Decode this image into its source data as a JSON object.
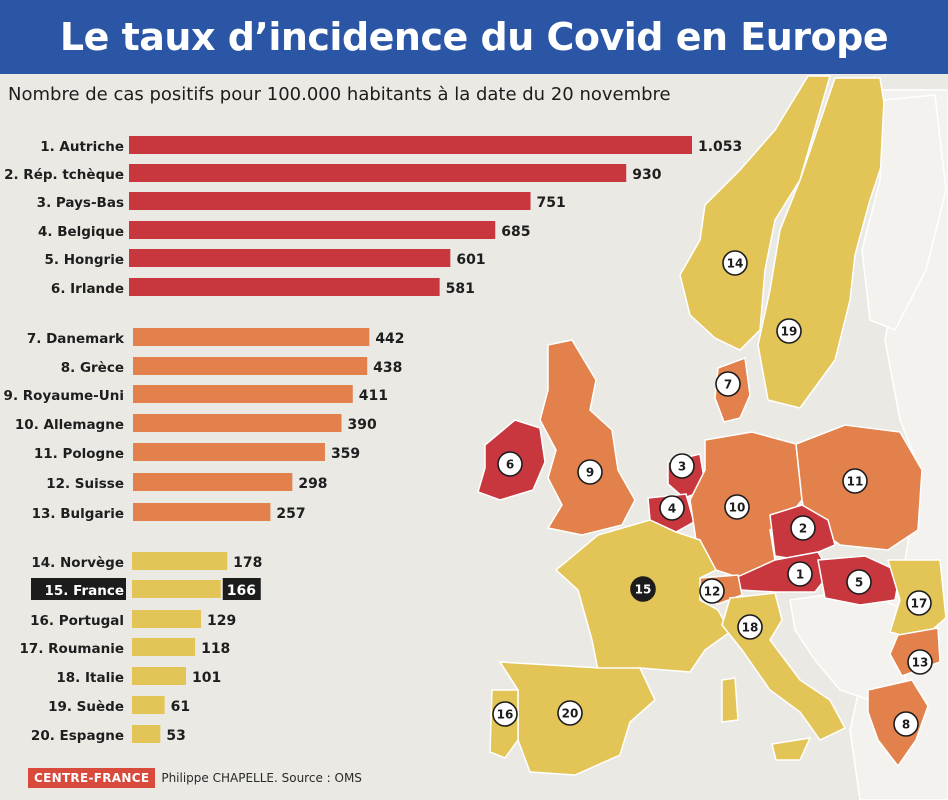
{
  "title": "Le taux d’incidence du Covid en Europe",
  "subtitle": "Nombre de cas positifs pour 100.000 habitants à la date du 20 novembre",
  "colors": {
    "group1": "#c8363e",
    "group2": "#e2814b",
    "group3": "#e3c456",
    "highlight": "#1c1c1c",
    "sea": "#ebe9e4",
    "other_land": "#f3f2ee",
    "border": "#ffffff"
  },
  "chart_data": {
    "type": "bar",
    "orientation": "horizontal",
    "categories": [
      "1. Autriche",
      "2. Rép. tchèque",
      "3. Pays-Bas",
      "4. Belgique",
      "5. Hongrie",
      "6. Irlande",
      "7. Danemark",
      "8. Grèce",
      "9. Royaume-Uni",
      "10. Allemagne",
      "11. Pologne",
      "12. Suisse",
      "13. Bulgarie",
      "14. Norvège",
      "15. France",
      "16. Portugal",
      "17. Roumanie",
      "18. Italie",
      "19. Suède",
      "20. Espagne"
    ],
    "values": [
      1053,
      930,
      751,
      685,
      601,
      581,
      442,
      438,
      411,
      390,
      359,
      298,
      257,
      178,
      166,
      129,
      118,
      101,
      61,
      53
    ],
    "value_labels": [
      "1.053",
      "930",
      "751",
      "685",
      "601",
      "581",
      "442",
      "438",
      "411",
      "390",
      "359",
      "298",
      "257",
      "178",
      "166",
      "129",
      "118",
      "101",
      "61",
      "53"
    ],
    "groups": [
      1,
      1,
      1,
      1,
      1,
      1,
      2,
      2,
      2,
      2,
      2,
      2,
      2,
      3,
      3,
      3,
      3,
      3,
      3,
      3
    ],
    "highlight_index": 14,
    "title": "Le taux d’incidence du Covid en Europe",
    "subtitle": "Nombre de cas positifs pour 100.000 habitants à la date du 20 novembre",
    "xlabel": "",
    "ylabel": "",
    "xlim": [
      0,
      1053
    ],
    "grid": false,
    "legend": "none"
  },
  "map": {
    "markers": [
      "1",
      "2",
      "3",
      "4",
      "5",
      "6",
      "7",
      "8",
      "9",
      "10",
      "11",
      "12",
      "13",
      "14",
      "15",
      "16",
      "17",
      "18",
      "19",
      "20"
    ]
  },
  "footer": {
    "source_badge": "CENTRE-FRANCE",
    "credit": "Philippe CHAPELLE. Source : OMS"
  }
}
